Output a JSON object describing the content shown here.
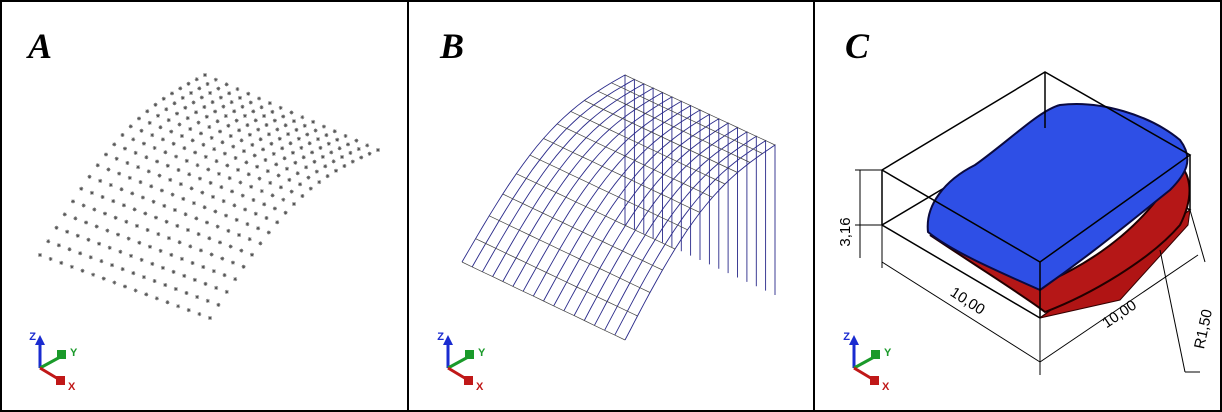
{
  "panels": [
    {
      "label": "A",
      "axes": {
        "z": "Z",
        "y": "Y",
        "x": "X"
      }
    },
    {
      "label": "B",
      "axes": {
        "z": "Z",
        "y": "Y",
        "x": "X"
      }
    },
    {
      "label": "C",
      "axes": {
        "z": "Z",
        "y": "Y",
        "x": "X"
      },
      "dimensions": {
        "height": "3,16",
        "width": "10,00",
        "depth": "10,00",
        "radius": "R1,50"
      }
    }
  ]
}
